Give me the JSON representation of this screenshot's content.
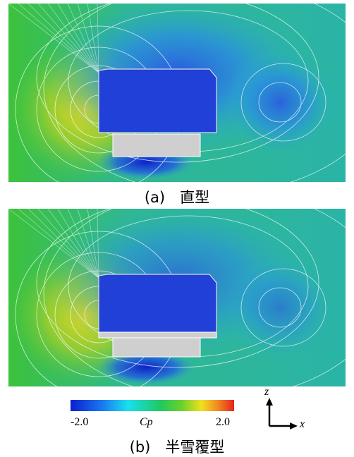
{
  "panels": [
    {
      "caption": "(a)　直型"
    },
    {
      "caption": "(b)　半雪覆型"
    }
  ],
  "colorbar": {
    "min_label": "-2.0",
    "variable": "Cp",
    "max_label": "2.0"
  },
  "axes": {
    "vertical": "z",
    "horizontal": "x"
  }
}
